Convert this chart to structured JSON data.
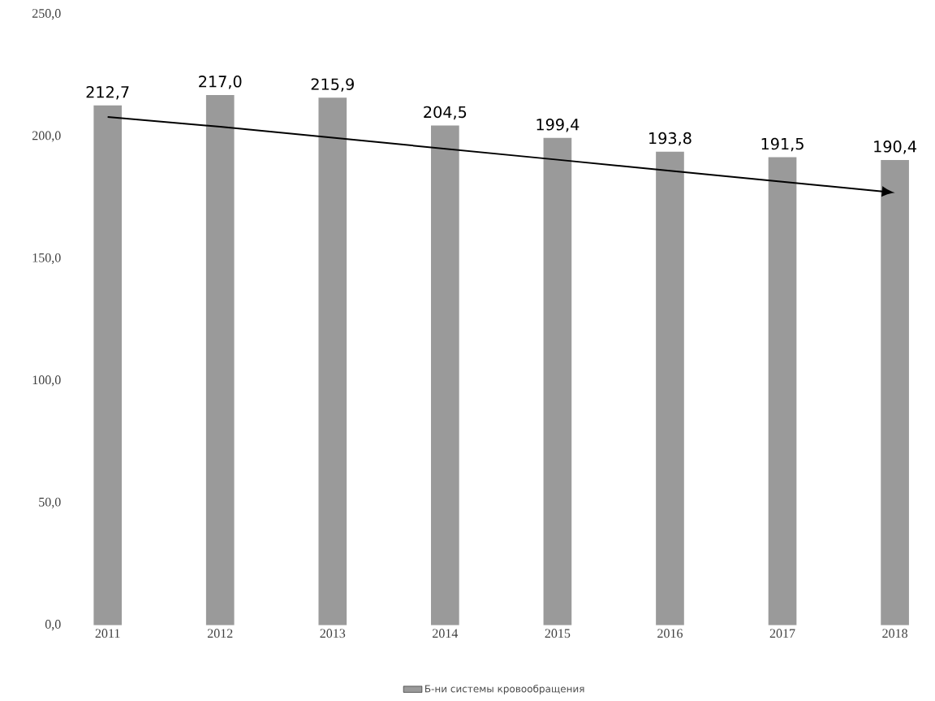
{
  "chart_data": {
    "type": "bar",
    "categories": [
      "2011",
      "2012",
      "2013",
      "2014",
      "2015",
      "2016",
      "2017",
      "2018"
    ],
    "series": [
      {
        "name": "Б-ни системы кровообращения",
        "color": "#9a9a9a",
        "values": [
          212.7,
          217.0,
          215.9,
          204.5,
          199.4,
          193.8,
          191.5,
          190.4
        ],
        "value_labels": [
          "212,7",
          "217,0",
          "215,9",
          "204,5",
          "199,4",
          "193,8",
          "191,5",
          "190,4"
        ]
      },
      {
        "type": "line",
        "color": "#000000",
        "values": [
          208,
          204,
          199.5,
          195,
          190.5,
          186,
          181.5,
          177
        ]
      }
    ],
    "ylim": [
      0,
      250
    ],
    "yticks": [
      {
        "value": 0,
        "label": "0,0"
      },
      {
        "value": 50,
        "label": "50,0"
      },
      {
        "value": 100,
        "label": "100,0"
      },
      {
        "value": 150,
        "label": "150,0"
      },
      {
        "value": 200,
        "label": "200,0"
      },
      {
        "value": 250,
        "label": "250,0"
      }
    ],
    "grid": false,
    "legend": "bottom"
  }
}
